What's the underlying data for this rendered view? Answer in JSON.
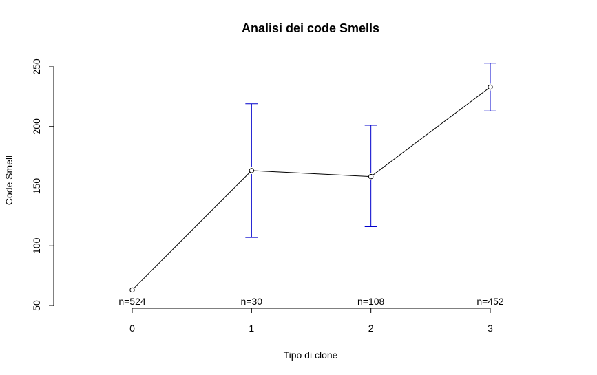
{
  "chart_data": {
    "type": "line",
    "title": "Analisi dei code Smells",
    "xlabel": "Tipo di clone",
    "ylabel": "Code Smell",
    "categories": [
      "0",
      "1",
      "2",
      "3"
    ],
    "x": [
      0,
      1,
      2,
      3
    ],
    "values": [
      63,
      163,
      158,
      233
    ],
    "error_lower": [
      null,
      107,
      116,
      213
    ],
    "error_upper": [
      null,
      219,
      201,
      253
    ],
    "n_labels": [
      "n=524",
      "n=30",
      "n=108",
      "n=452"
    ],
    "y_ticks": [
      50,
      100,
      150,
      200,
      250
    ],
    "ylim": [
      50,
      255
    ],
    "grid": false,
    "colors": {
      "line": "#000000",
      "error_bars": "#0000cc",
      "points": "#000000"
    }
  }
}
